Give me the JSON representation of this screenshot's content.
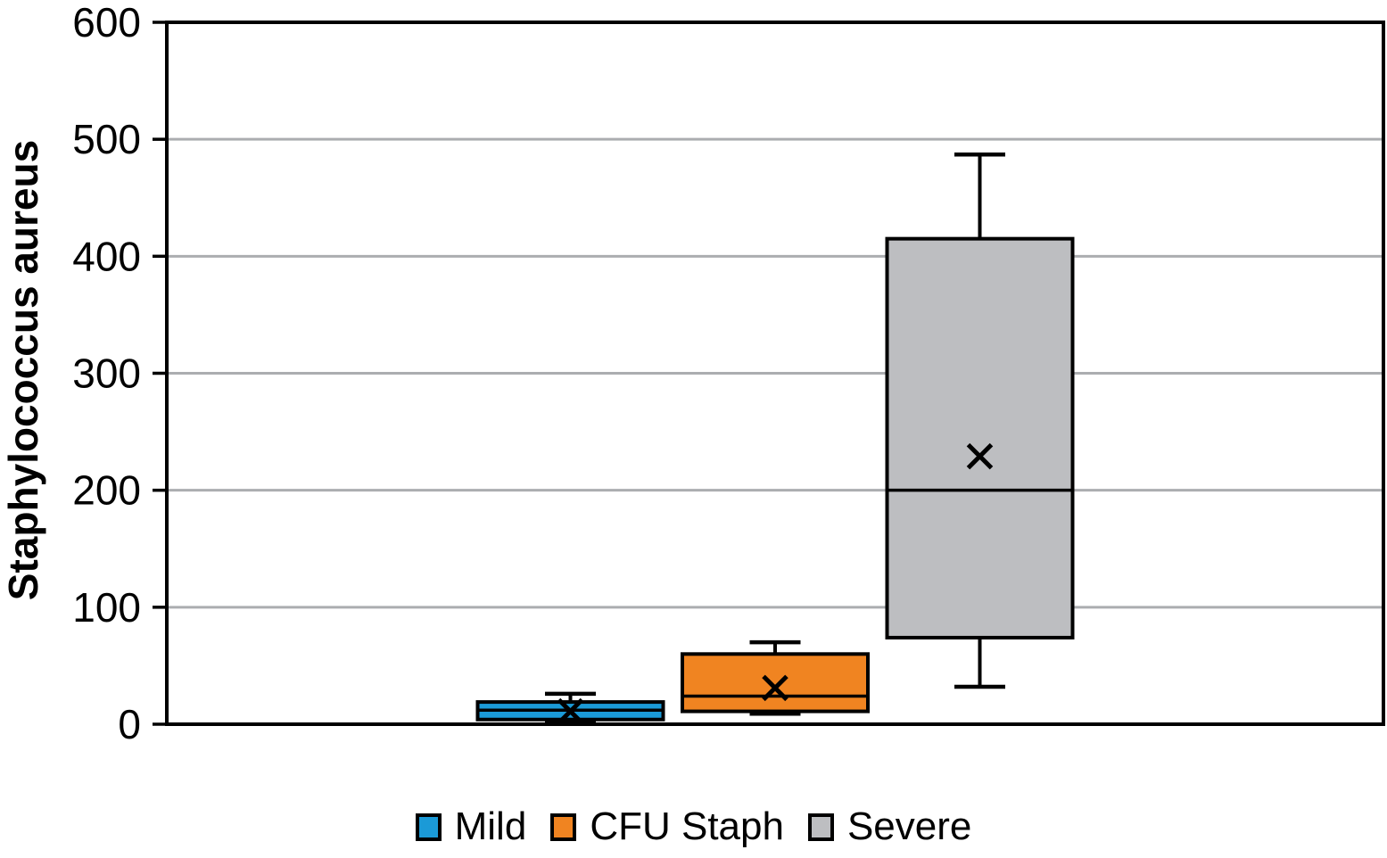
{
  "chart_data": {
    "type": "boxplot",
    "title": "",
    "ylabel": "Staphylococcus aureus",
    "xlabel": "",
    "ylim": [
      0,
      600
    ],
    "yticks": [
      0,
      100,
      200,
      300,
      400,
      500,
      600
    ],
    "grid": true,
    "grid_color": "#ABADB0",
    "axis_color": "#000000",
    "legend_position": "bottom",
    "mean_marker": "x",
    "series": [
      {
        "name": "Mild",
        "color": "#1B9AD7",
        "min": 1,
        "q1": 4,
        "median": 12,
        "q3": 19,
        "max": 26,
        "mean": 11
      },
      {
        "name": "CFU Staph",
        "color": "#F08421",
        "min": 9,
        "q1": 11,
        "median": 24,
        "q3": 60,
        "max": 70,
        "mean": 31
      },
      {
        "name": "Severe",
        "color": "#BDBEC1",
        "min": 32,
        "q1": 74,
        "median": 200,
        "q3": 415,
        "max": 487,
        "mean": 229
      }
    ]
  }
}
